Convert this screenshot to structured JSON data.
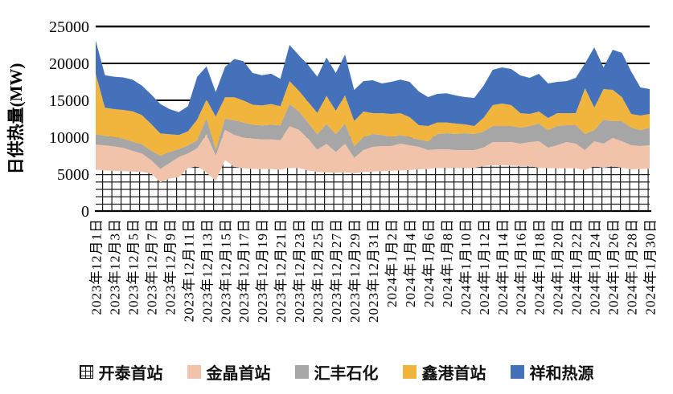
{
  "chart_data": {
    "type": "area",
    "stacked": true,
    "title": "",
    "ylabel": "日供热量(MW)",
    "xlabel": "",
    "ylim": [
      0,
      25000
    ],
    "yticks": [
      0,
      5000,
      10000,
      15000,
      20000,
      25000
    ],
    "grid": "horizontal-black-lines",
    "legend_position": "bottom",
    "n_points": 61,
    "x_label_every": 2,
    "x_tick_labels": [
      "2023年12月1日",
      "2023年12月3日",
      "2023年12月5日",
      "2023年12月7日",
      "2023年12月9日",
      "2023年12月11日",
      "2023年12月13日",
      "2023年12月15日",
      "2023年12月17日",
      "2023年12月19日",
      "2023年12月21日",
      "2023年12月23日",
      "2023年12月25日",
      "2023年12月27日",
      "2023年12月29日",
      "2023年12月31日",
      "2024年1月2日",
      "2024年1月4日",
      "2024年1月6日",
      "2024年1月8日",
      "2024年1月10日",
      "2024年1月12日",
      "2024年1月14日",
      "2024年1月16日",
      "2024年1月18日",
      "2024年1月20日",
      "2024年1月22日",
      "2024年1月24日",
      "2024年1月26日",
      "2024年1月28日",
      "2024年1月30日"
    ],
    "series": [
      {
        "name": "开泰首站",
        "fill": "grid-hatch-pattern",
        "color": "#ffffff",
        "pattern_line_color": "#1a1a1a",
        "values": [
          5600,
          5500,
          5450,
          5400,
          5350,
          5300,
          5100,
          3900,
          4400,
          4600,
          5800,
          6100,
          5200,
          4100,
          6900,
          6000,
          5800,
          5700,
          5700,
          5700,
          5600,
          5900,
          5800,
          5500,
          5300,
          5250,
          5200,
          5250,
          5100,
          5300,
          5350,
          5400,
          5450,
          5500,
          5550,
          5650,
          5700,
          5870,
          5870,
          5870,
          5870,
          5870,
          6090,
          6200,
          6200,
          6150,
          6100,
          6100,
          5870,
          5800,
          5800,
          5800,
          5800,
          5540,
          6090,
          5870,
          6090,
          5870,
          5650,
          5700,
          5750
        ]
      },
      {
        "name": "金晶首站",
        "fill": "solid",
        "color": "#F2C3AB",
        "values": [
          3400,
          3400,
          3300,
          3150,
          2800,
          2500,
          1800,
          1800,
          2100,
          2700,
          2000,
          2400,
          5200,
          3400,
          4100,
          4300,
          4200,
          4100,
          4000,
          4000,
          4000,
          5600,
          5200,
          4300,
          3000,
          3850,
          2800,
          3850,
          2100,
          2960,
          3350,
          3400,
          3350,
          3630,
          3350,
          3050,
          2560,
          2500,
          2500,
          2390,
          2390,
          2390,
          2500,
          3150,
          3150,
          3200,
          3030,
          3250,
          3590,
          2790,
          3110,
          3550,
          3330,
          2720,
          3370,
          3260,
          3800,
          3590,
          3260,
          3100,
          3160
        ]
      },
      {
        "name": "汇丰石化",
        "fill": "solid",
        "color": "#A6A6A6",
        "values": [
          1400,
          1300,
          1250,
          1250,
          1250,
          1250,
          1300,
          1800,
          1500,
          1100,
          1100,
          1100,
          2200,
          800,
          1500,
          2000,
          2000,
          1900,
          1900,
          2000,
          2000,
          3000,
          2500,
          2200,
          2100,
          2700,
          2400,
          2750,
          1600,
          1740,
          1730,
          1500,
          1200,
          1170,
          1100,
          970,
          1200,
          2060,
          2170,
          2170,
          2280,
          2170,
          2170,
          2170,
          2170,
          2170,
          2170,
          2170,
          2390,
          2390,
          2610,
          2280,
          2500,
          2170,
          1520,
          3260,
          2280,
          2710,
          2390,
          2180,
          2390
        ]
      },
      {
        "name": "鑫港首站",
        "fill": "solid",
        "color": "#F1B53E",
        "values": [
          8200,
          3800,
          3800,
          3900,
          4100,
          3950,
          3600,
          3000,
          2400,
          1900,
          1900,
          2800,
          2500,
          4500,
          2900,
          3100,
          3000,
          2700,
          2700,
          2800,
          2600,
          3100,
          2800,
          2800,
          2900,
          3800,
          3200,
          3800,
          3400,
          3480,
          2830,
          2960,
          3150,
          2960,
          2720,
          1960,
          2060,
          1570,
          1460,
          1420,
          1200,
          1090,
          1850,
          2830,
          3040,
          2830,
          1960,
          1630,
          1630,
          1630,
          1740,
          1630,
          1630,
          6200,
          3040,
          4130,
          4240,
          3270,
          1850,
          1950,
          1850
        ]
      },
      {
        "name": "祥和热源",
        "fill": "solid",
        "color": "#4471B9",
        "values": [
          4500,
          4400,
          4400,
          4400,
          4300,
          4000,
          4000,
          4000,
          3400,
          3100,
          3400,
          5800,
          4500,
          3300,
          4100,
          5200,
          5300,
          4300,
          4100,
          4100,
          3700,
          4900,
          4800,
          5000,
          4900,
          5200,
          5100,
          5550,
          4200,
          4120,
          4460,
          4020,
          4350,
          4540,
          4780,
          4570,
          3920,
          3870,
          3950,
          3800,
          3700,
          3810,
          4350,
          4780,
          4900,
          4890,
          5110,
          4890,
          5110,
          4670,
          4240,
          4340,
          4780,
          3370,
          8150,
          2940,
          5440,
          5980,
          5750,
          3810,
          3370
        ]
      }
    ]
  }
}
